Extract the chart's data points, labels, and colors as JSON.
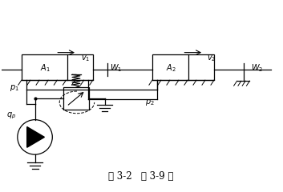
{
  "fig_width": 3.53,
  "fig_height": 2.4,
  "dpi": 100,
  "bg_color": "#ffffff",
  "lc": "#000000",
  "caption": "图 3-2   例 3-9 图",
  "caption_fontsize": 8.5
}
